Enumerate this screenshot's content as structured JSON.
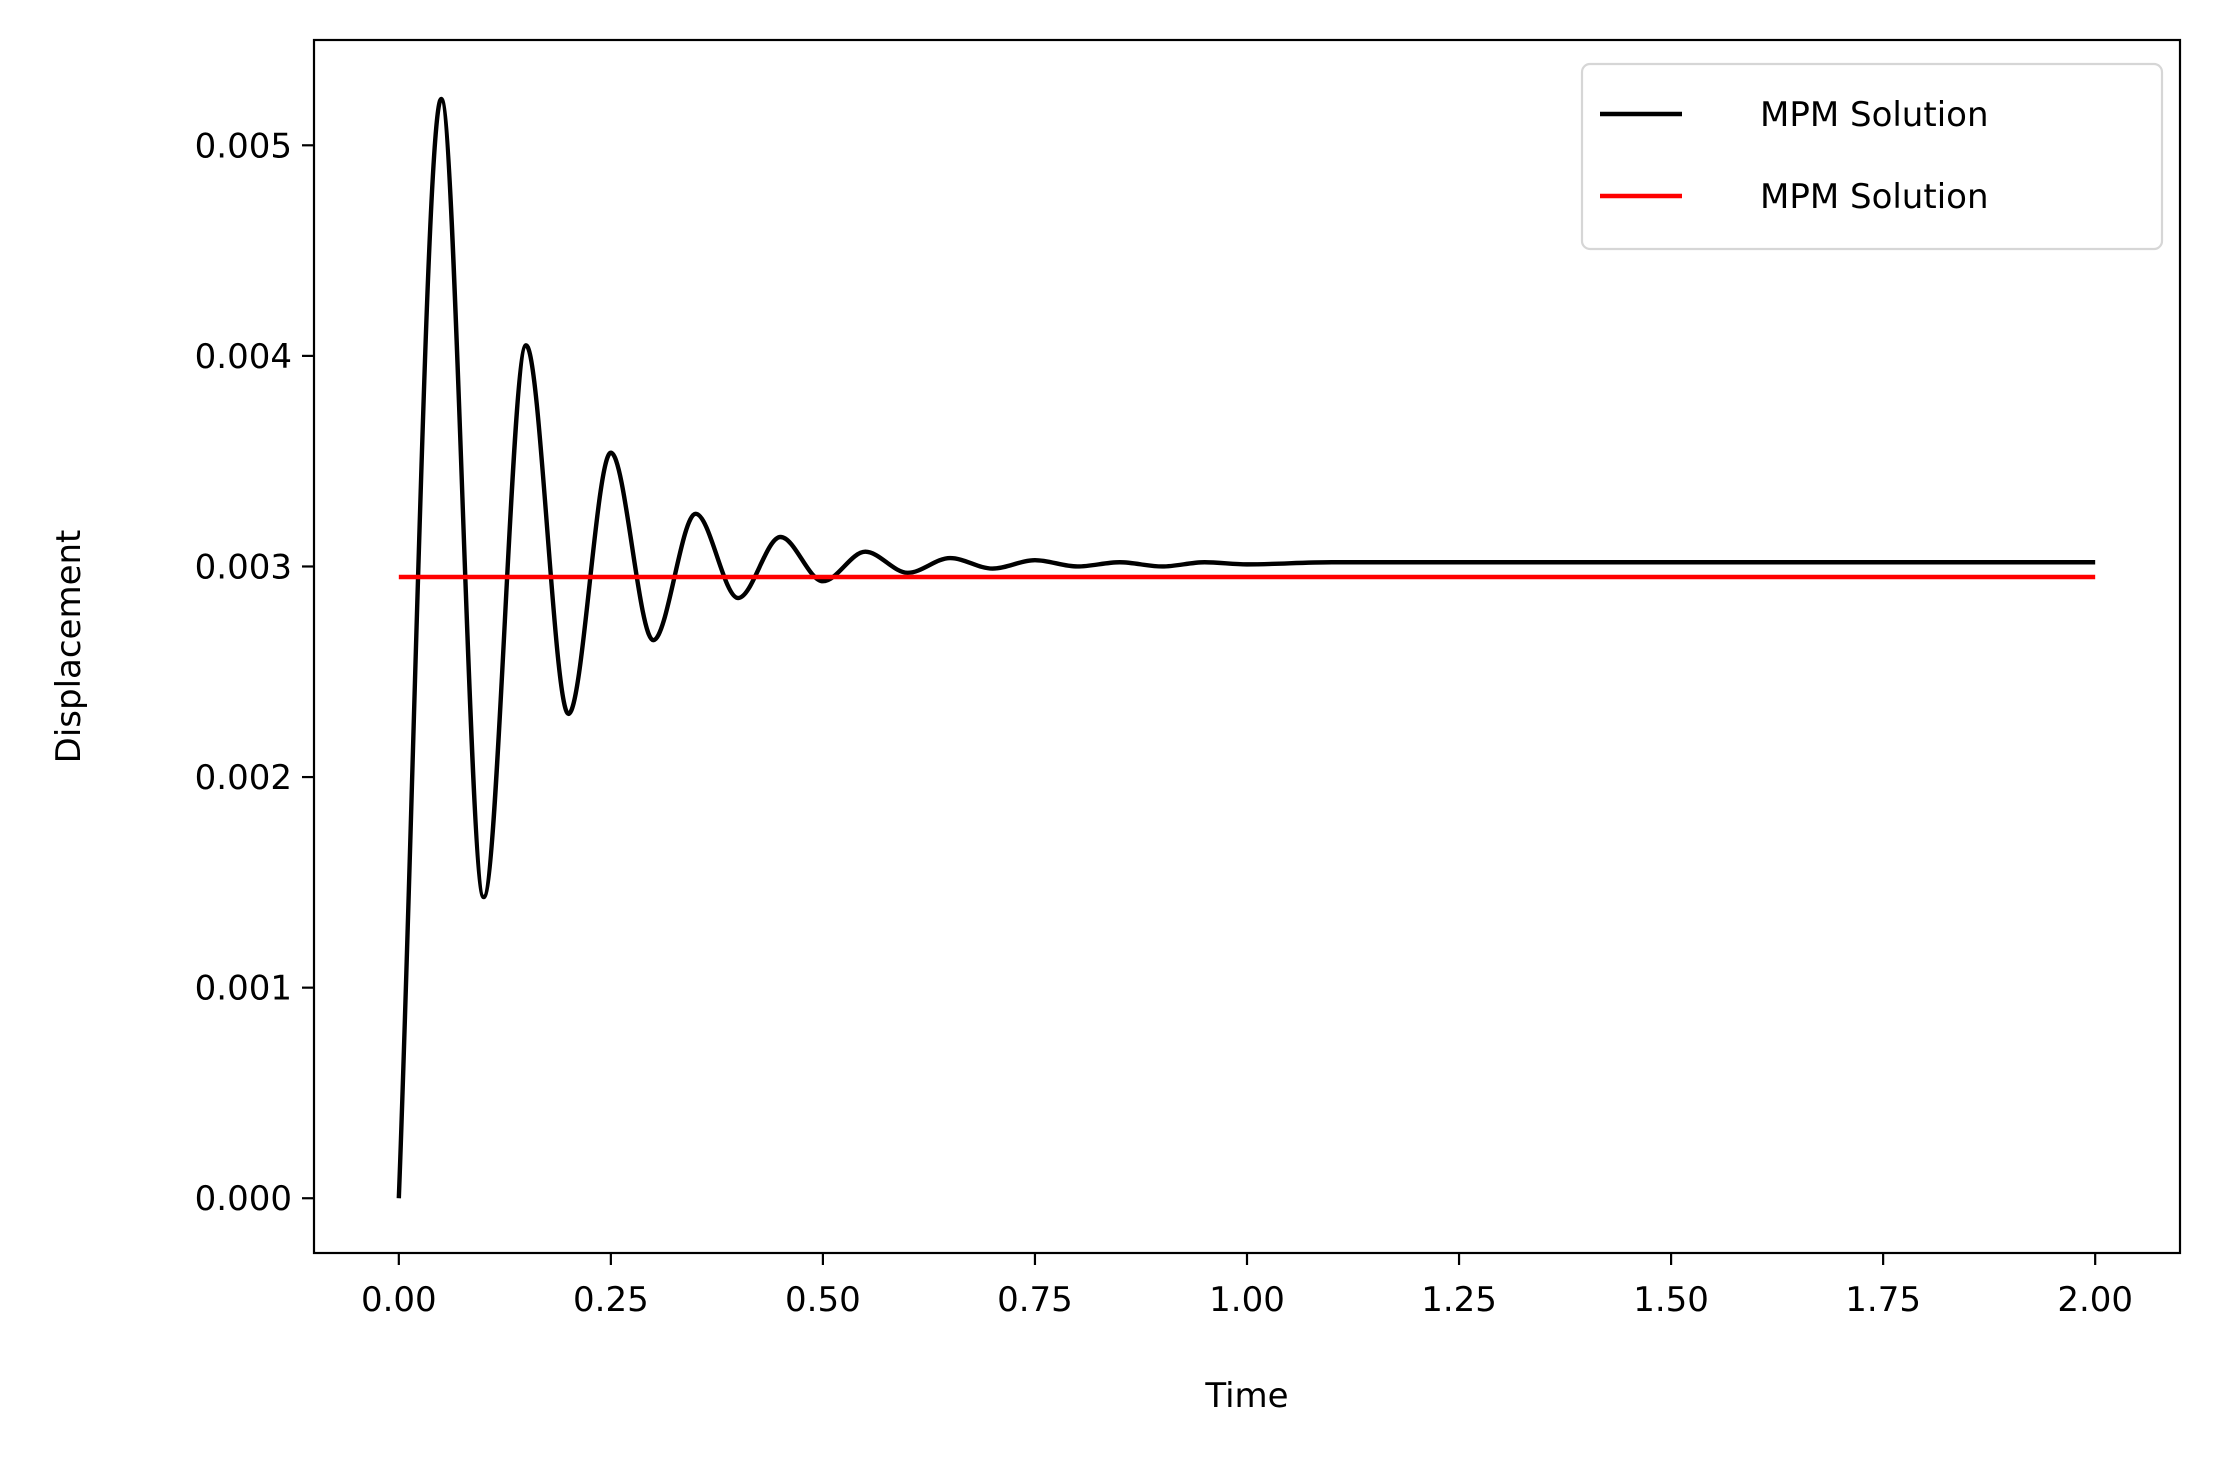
{
  "chart_data": {
    "type": "line",
    "title": "",
    "xlabel": "Time",
    "ylabel": "Displacement",
    "xlim": [
      -0.1,
      2.1
    ],
    "ylim": [
      -0.00026,
      0.0055
    ],
    "x_ticks": [
      0.0,
      0.25,
      0.5,
      0.75,
      1.0,
      1.25,
      1.5,
      1.75,
      2.0
    ],
    "x_tick_labels": [
      "0.00",
      "0.25",
      "0.50",
      "0.75",
      "1.00",
      "1.25",
      "1.50",
      "1.75",
      "2.00"
    ],
    "y_ticks": [
      0.0,
      0.001,
      0.002,
      0.003,
      0.004,
      0.005
    ],
    "y_tick_labels": [
      "0.000",
      "0.001",
      "0.002",
      "0.003",
      "0.004",
      "0.005"
    ],
    "grid": false,
    "legend_position": "top-right",
    "series": [
      {
        "name": "MPM Solution",
        "color": "#000000",
        "x": [
          0.0,
          0.05,
          0.1,
          0.15,
          0.2,
          0.25,
          0.3,
          0.35,
          0.4,
          0.45,
          0.5,
          0.55,
          0.6,
          0.65,
          0.7,
          0.75,
          0.8,
          0.85,
          0.9,
          0.95,
          1.0,
          1.1,
          1.25,
          1.5,
          1.75,
          2.0
        ],
        "y": [
          0.0,
          0.00522,
          0.00143,
          0.00405,
          0.0023,
          0.00354,
          0.00265,
          0.00325,
          0.00285,
          0.00314,
          0.00293,
          0.00307,
          0.00297,
          0.00304,
          0.00299,
          0.00303,
          0.003,
          0.00302,
          0.003,
          0.00302,
          0.00301,
          0.00302,
          0.00302,
          0.00302,
          0.00302,
          0.00302
        ]
      },
      {
        "name": "MPM Solution",
        "color": "#ff0000",
        "x": [
          0.0,
          2.0
        ],
        "y": [
          0.00295,
          0.00295
        ]
      }
    ]
  }
}
